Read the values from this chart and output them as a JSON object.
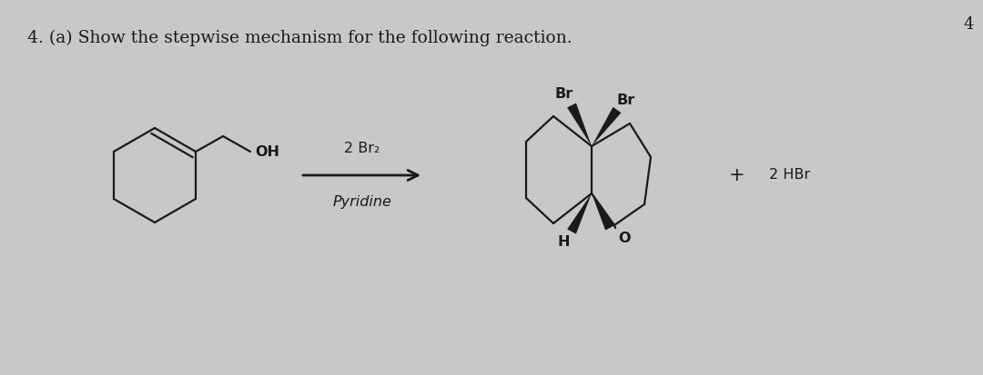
{
  "title": "4. (a) Show the stepwise mechanism for the following reaction.",
  "bg_color": "#c8c8c8",
  "text_color": "#1a1a1a",
  "page_number": "4",
  "reagent_above": "2 Br₂",
  "reagent_below": "Pyridine",
  "plus_sign": "+",
  "byproduct": "2 HBr",
  "label_OH": "OH",
  "label_Br1": "Br",
  "label_Br2": "Br",
  "label_H": "H",
  "label_O": "O"
}
